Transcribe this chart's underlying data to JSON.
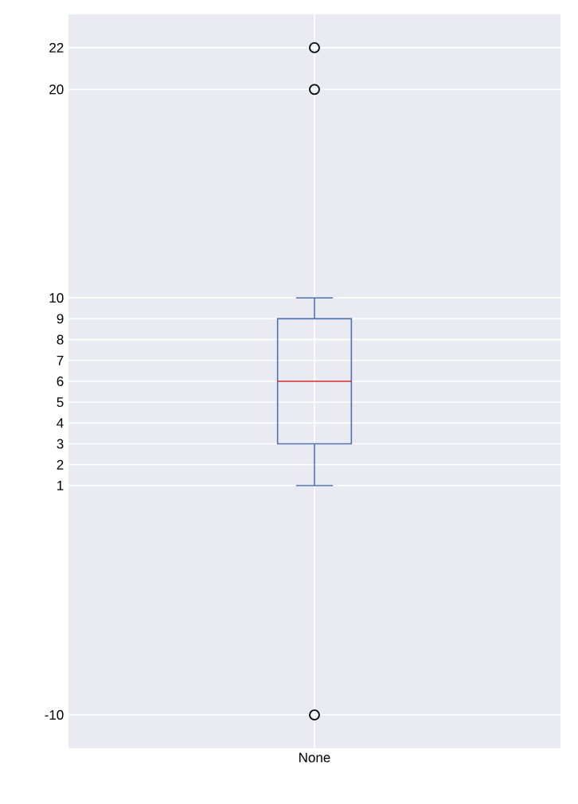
{
  "chart_data": {
    "type": "box",
    "categories": [
      "None"
    ],
    "series": [
      {
        "color": "#4c72b0",
        "boxes": [
          {
            "low": 1,
            "q1": 3,
            "median": 6,
            "q3": 9,
            "high": 10,
            "outliers": [
              20,
              22,
              -10
            ]
          }
        ]
      }
    ],
    "ylim": [
      -11.6,
      23.6
    ],
    "yticks": [
      -10,
      1,
      2,
      3,
      4,
      5,
      6,
      7,
      8,
      9,
      10,
      20,
      22
    ],
    "grid": true
  }
}
